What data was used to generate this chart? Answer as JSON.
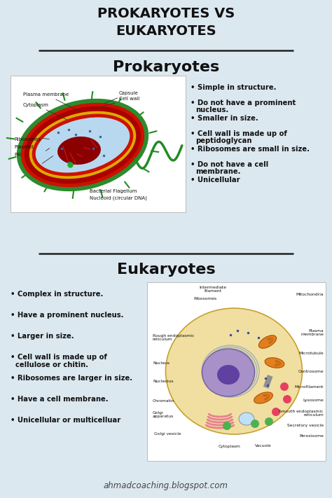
{
  "title": "PROKARYOTES VS\nEUKARYOTES",
  "bg_color": "#dce8f0",
  "title_color": "#111111",
  "section1_title": "Prokaryotes",
  "section2_title": "Eukaryotes",
  "prokaryote_bullets": [
    "Simple in structure.",
    "Do not have a prominent\nnucleus.",
    "Smaller in size.",
    "Cell wall is made up of\npeptidoglycan",
    "Ribosomes are small in size.",
    "Do not have a cell\nmembrane.",
    "Unicellular"
  ],
  "eukaryote_bullets": [
    "Complex in structure.",
    "Have a prominent nucleus.",
    "Larger in size.",
    "Cell wall is made up of\ncellulose or chitin.",
    "Ribosomes are larger in size.",
    "Have a cell membrane.",
    "Unicellular or multicelluar"
  ],
  "footer": "ahmadcoaching.blogspot.com",
  "divider_color": "#222222",
  "text_color": "#111111",
  "section_title_color": "#111111",
  "white_box": "#ffffff"
}
